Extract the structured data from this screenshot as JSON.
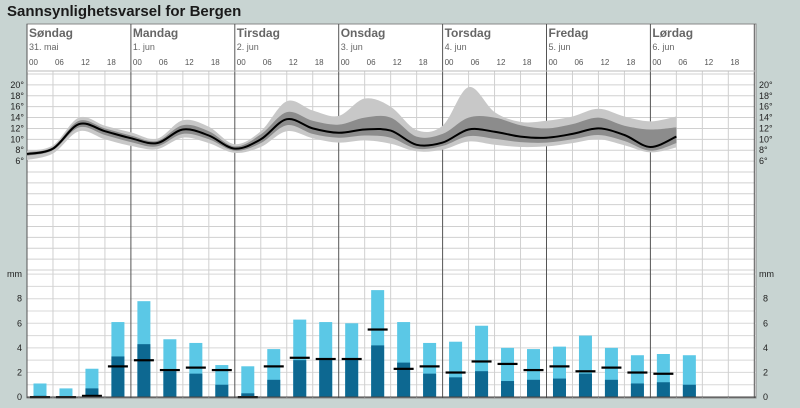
{
  "title": "Sannsynlighetsvarsel for Bergen",
  "chart_data": [
    {
      "type": "area",
      "subject": "temperature",
      "days": [
        {
          "name": "Søndag",
          "date": "31. mai"
        },
        {
          "name": "Mandag",
          "date": "1. jun"
        },
        {
          "name": "Tirsdag",
          "date": "2. jun"
        },
        {
          "name": "Onsdag",
          "date": "3. jun"
        },
        {
          "name": "Torsdag",
          "date": "4. jun"
        },
        {
          "name": "Fredag",
          "date": "5. jun"
        },
        {
          "name": "Lørdag",
          "date": "6. jun"
        }
      ],
      "hour_ticks": [
        "00",
        "06",
        "12",
        "18"
      ],
      "y_ticks": [
        "20°",
        "18°",
        "16°",
        "14°",
        "12°",
        "10°",
        "8°",
        "6°"
      ],
      "y_tick_values": [
        20,
        18,
        16,
        14,
        12,
        10,
        8,
        6
      ],
      "ylim": [
        -14,
        22
      ],
      "x_hours": [
        0,
        6,
        12,
        18,
        24,
        30,
        36,
        42,
        48,
        54,
        60,
        66,
        72,
        78,
        84,
        90,
        96,
        102,
        108,
        114,
        120,
        126,
        132,
        138,
        144,
        150
      ],
      "median": [
        7.3,
        8.3,
        12.8,
        11.5,
        10.2,
        9.3,
        11.8,
        10.7,
        8.3,
        10.0,
        13.7,
        12.0,
        11.2,
        11.8,
        11.6,
        9.0,
        9.4,
        11.8,
        11.4,
        10.5,
        10.3,
        11.0,
        12.0,
        10.8,
        8.6,
        10.5
      ],
      "inner_low": [
        7.0,
        8.0,
        12.2,
        10.8,
        9.5,
        8.7,
        11.0,
        10.0,
        7.9,
        9.3,
        12.6,
        11.0,
        10.3,
        10.7,
        10.3,
        8.3,
        8.8,
        10.6,
        10.1,
        9.5,
        9.4,
        10.0,
        10.8,
        9.7,
        7.9,
        9.3
      ],
      "inner_high": [
        7.6,
        8.6,
        13.4,
        12.0,
        10.7,
        9.7,
        12.6,
        11.5,
        8.7,
        10.9,
        15.0,
        13.4,
        12.7,
        14.0,
        14.0,
        10.5,
        11.0,
        14.0,
        14.0,
        12.6,
        12.0,
        12.8,
        14.0,
        12.5,
        11.8,
        12.2
      ],
      "outer_low": [
        6.2,
        7.4,
        11.5,
        10.0,
        8.8,
        8.2,
        10.3,
        9.3,
        7.5,
        8.6,
        11.5,
        10.2,
        9.4,
        9.8,
        9.2,
        7.8,
        8.1,
        9.6,
        9.0,
        8.6,
        8.7,
        9.3,
        10.0,
        8.9,
        7.6,
        8.5
      ],
      "outer_high": [
        7.9,
        8.9,
        14.0,
        12.5,
        11.3,
        10.1,
        13.5,
        12.3,
        9.1,
        11.5,
        17.0,
        15.3,
        14.3,
        17.5,
        16.0,
        11.7,
        12.5,
        19.6,
        15.0,
        13.2,
        13.4,
        14.2,
        15.6,
        14.2,
        13.3,
        14.2
      ]
    },
    {
      "type": "bar",
      "subject": "precipitation",
      "unit": "mm",
      "y_ticks": [
        "8",
        "6",
        "4",
        "2",
        "0"
      ],
      "y_tick_values": [
        8,
        6,
        4,
        2,
        0
      ],
      "ylim": [
        0,
        10.5
      ],
      "x_hours": [
        0,
        6,
        12,
        18,
        24,
        30,
        36,
        42,
        48,
        54,
        60,
        66,
        72,
        78,
        84,
        90,
        96,
        102,
        108,
        114,
        120,
        126,
        132,
        138,
        144,
        150
      ],
      "high": [
        1.1,
        0.7,
        2.3,
        6.1,
        7.8,
        4.7,
        4.4,
        2.6,
        2.5,
        3.9,
        6.3,
        6.1,
        6.0,
        8.7,
        6.1,
        4.4,
        4.5,
        5.8,
        4.0,
        3.9,
        4.1,
        5.0,
        4.0,
        3.4,
        3.5,
        3.4
      ],
      "low": [
        0.1,
        0.05,
        0.7,
        3.3,
        4.3,
        2.1,
        1.9,
        1.0,
        0.3,
        1.4,
        3.0,
        3.1,
        3.1,
        4.2,
        2.8,
        1.9,
        1.6,
        2.1,
        1.3,
        1.4,
        1.5,
        1.9,
        1.4,
        1.1,
        1.2,
        1.0
      ],
      "median": [
        0.0,
        0.0,
        0.1,
        2.5,
        3.0,
        2.2,
        2.4,
        2.2,
        0.0,
        2.5,
        3.2,
        3.1,
        3.1,
        5.5,
        2.3,
        2.5,
        2.0,
        2.9,
        2.7,
        2.2,
        2.5,
        2.1,
        2.4,
        2.0,
        1.9,
        null
      ],
      "colors": {
        "high": "#5bc8e6",
        "low": "#0d6891",
        "median": "#000000"
      }
    }
  ]
}
